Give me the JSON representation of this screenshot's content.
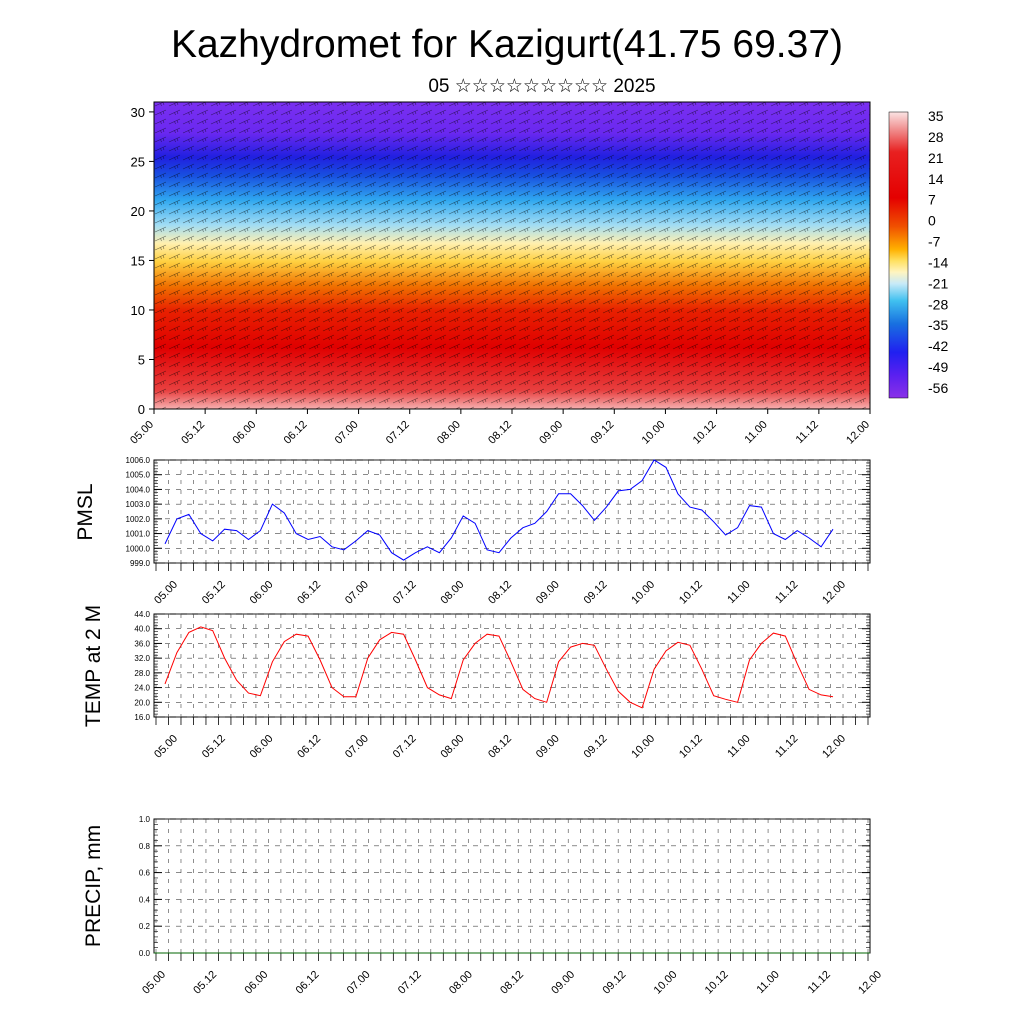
{
  "title": "Kazhydromet for Kazigurt(41.75 69.37)",
  "subtitle": "05 ☆☆☆☆☆☆☆☆☆ 2025",
  "colors": {
    "pmsl_line": "#0000ff",
    "temp_line": "#ff0000",
    "precip_line": "#006400",
    "axis": "#000000",
    "grid": "#555555"
  },
  "chart_data": [
    {
      "type": "heatmap",
      "name": "cross-section",
      "x_ticks": [
        "05.00",
        "05.12",
        "06.00",
        "06.12",
        "07.00",
        "07.12",
        "08.00",
        "08.12",
        "09.00",
        "09.12",
        "10.00",
        "10.12",
        "11.00",
        "11.12",
        "12.00"
      ],
      "y_ticks": [
        "0",
        "5",
        "10",
        "15",
        "20",
        "25",
        "30"
      ],
      "ylim": [
        0,
        31
      ],
      "colorbar_labels": [
        "35",
        "28",
        "21",
        "14",
        "7",
        "0",
        "-7",
        "-14",
        "-21",
        "-28",
        "-35",
        "-42",
        "-49",
        "-56"
      ],
      "colorbar_range": [
        -60,
        38
      ],
      "wind_barbs": true
    },
    {
      "type": "line",
      "name": "pmsl",
      "ylabel": "PMSL",
      "y_ticks": [
        "1006.0",
        "1005.0",
        "1004.0",
        "1003.0",
        "1002.0",
        "1001.0",
        "1000.0",
        "999.0"
      ],
      "ylim": [
        999.0,
        1006.0
      ],
      "x_ticks": [
        "05.00",
        "05.12",
        "06.00",
        "06.12",
        "07.00",
        "07.12",
        "08.00",
        "08.12",
        "09.00",
        "09.12",
        "10.00",
        "10.12",
        "11.00",
        "11.12",
        "12.00"
      ],
      "x_step_hours": 3,
      "values": [
        1000.3,
        1002.0,
        1002.3,
        1001.0,
        1000.5,
        1001.3,
        1001.2,
        1000.6,
        1001.2,
        1003.0,
        1002.4,
        1001.0,
        1000.6,
        1000.8,
        1000.1,
        999.9,
        1000.5,
        1001.2,
        1000.9,
        999.7,
        999.2,
        999.7,
        1000.1,
        999.7,
        1000.7,
        1002.2,
        1001.7,
        999.9,
        999.7,
        1000.7,
        1001.4,
        1001.7,
        1002.5,
        1003.7,
        1003.7,
        1002.9,
        1001.9,
        1002.8,
        1003.9,
        1004.0,
        1004.6,
        1006.0,
        1005.5,
        1003.7,
        1002.8,
        1002.6,
        1001.8,
        1000.9,
        1001.4,
        1002.9,
        1002.8,
        1001.0,
        1000.6,
        1001.2,
        1000.7,
        1000.1,
        1001.3
      ]
    },
    {
      "type": "line",
      "name": "temp",
      "ylabel": "TEMP at 2 M",
      "y_ticks": [
        "44.0",
        "40.0",
        "36.0",
        "32.0",
        "28.0",
        "24.0",
        "20.0",
        "16.0"
      ],
      "ylim": [
        16.0,
        44.0
      ],
      "x_ticks": [
        "05.00",
        "05.12",
        "06.00",
        "06.12",
        "07.00",
        "07.12",
        "08.00",
        "08.12",
        "09.00",
        "09.12",
        "10.00",
        "10.12",
        "11.00",
        "11.12",
        "12.00"
      ],
      "x_step_hours": 3,
      "values": [
        25.0,
        33.5,
        39.0,
        40.5,
        39.5,
        32.0,
        26.0,
        22.5,
        21.8,
        31.0,
        36.5,
        38.5,
        38.0,
        31.5,
        24.0,
        21.5,
        21.5,
        32.0,
        37.0,
        39.0,
        38.5,
        31.5,
        24.0,
        22.0,
        21.0,
        31.5,
        36.0,
        38.5,
        38.0,
        31.0,
        23.5,
        21.0,
        20.0,
        31.0,
        35.0,
        36.0,
        35.5,
        29.0,
        23.0,
        20.0,
        18.5,
        29.0,
        34.0,
        36.3,
        35.5,
        29.0,
        21.8,
        20.8,
        20.0,
        31.5,
        36.0,
        38.8,
        38.0,
        30.5,
        23.5,
        22.0,
        21.5
      ]
    },
    {
      "type": "line",
      "name": "precip",
      "ylabel": "PRECIP, mm",
      "y_ticks": [
        "1.0",
        "0.8",
        "0.6",
        "0.4",
        "0.2",
        "0.0"
      ],
      "ylim": [
        0.0,
        1.0
      ],
      "x_ticks": [
        "05.00",
        "05.12",
        "06.00",
        "06.12",
        "07.00",
        "07.12",
        "08.00",
        "08.12",
        "09.00",
        "09.12",
        "10.00",
        "10.12",
        "11.00",
        "11.12",
        "12.00"
      ],
      "values": [
        0,
        0
      ]
    }
  ]
}
